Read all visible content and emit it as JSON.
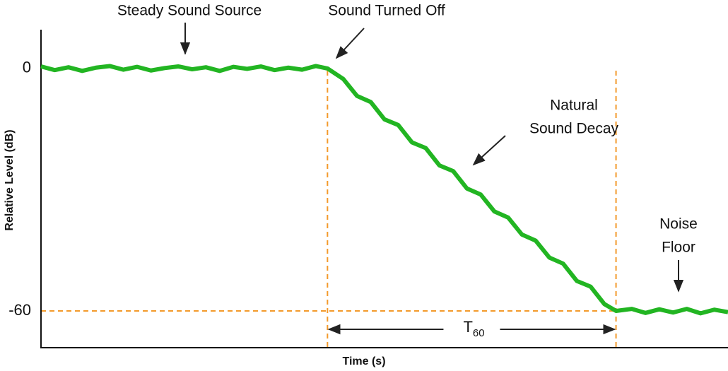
{
  "chart_data": {
    "type": "line",
    "x_label": "Time (s)",
    "y_label": "Relative Level (dB)",
    "xlim": [
      0,
      100
    ],
    "ylim": [
      -69.1,
      9.6
    ],
    "yticks": [
      0,
      -60
    ],
    "x": [
      0,
      2,
      4,
      6,
      8,
      10,
      12,
      14,
      16,
      18,
      20,
      22,
      24,
      26,
      28,
      30,
      32,
      34,
      36,
      38,
      40,
      41.7,
      44,
      46,
      48,
      50,
      52,
      54,
      56,
      58,
      60,
      62,
      64,
      66,
      68,
      70,
      72,
      74,
      76,
      78,
      80,
      82,
      83.7,
      86,
      88,
      90,
      92,
      94,
      96,
      98,
      100
    ],
    "series": [
      {
        "color": "#22b522",
        "values": [
          0.5,
          -0.4,
          0.3,
          -0.6,
          0.2,
          0.6,
          -0.3,
          0.4,
          -0.5,
          0.1,
          0.5,
          -0.2,
          0.3,
          -0.6,
          0.4,
          -0.1,
          0.5,
          -0.4,
          0.2,
          -0.3,
          0.6,
          0,
          -2.6,
          -6.8,
          -8.3,
          -12.6,
          -14.0,
          -18.3,
          -19.7,
          -24.0,
          -25.4,
          -29.7,
          -31.2,
          -35.4,
          -36.9,
          -41.1,
          -42.6,
          -46.8,
          -48.3,
          -52.6,
          -54.0,
          -58.3,
          -60,
          -59.5,
          -60.5,
          -59.6,
          -60.4,
          -59.5,
          -60.6,
          -59.7,
          -60.3
        ]
      }
    ],
    "reference_lines": {
      "color": "#f39a2b",
      "x": [
        41.7,
        83.7
      ],
      "y": [
        -60
      ]
    },
    "annotations": [
      {
        "lines": [
          "Steady Sound Source"
        ]
      },
      {
        "lines": [
          "Sound Turned Off"
        ]
      },
      {
        "lines": [
          "Natural",
          "Sound Decay"
        ]
      },
      {
        "lines": [
          "Noise",
          "Floor"
        ]
      }
    ],
    "span_label": {
      "text": "T",
      "subscript": "60"
    }
  }
}
